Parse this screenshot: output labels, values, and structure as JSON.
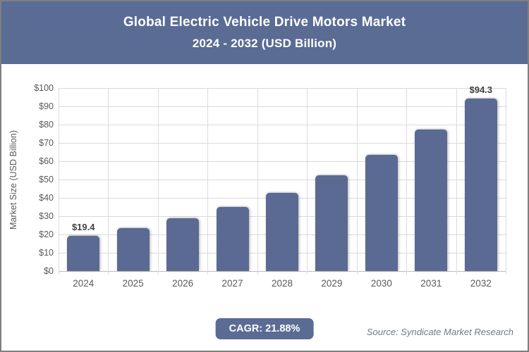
{
  "header": {
    "title_line1": "Global Electric Vehicle Drive Motors Market",
    "title_line2": "2024 - 2032 (USD Billion)"
  },
  "chart_data": {
    "type": "bar",
    "title": "Global Electric Vehicle Drive Motors Market 2024 - 2032 (USD Billion)",
    "categories": [
      "2024",
      "2025",
      "2026",
      "2027",
      "2028",
      "2029",
      "2030",
      "2031",
      "2032"
    ],
    "values": [
      19.4,
      23.6,
      28.8,
      35.1,
      42.8,
      52.2,
      63.6,
      77.5,
      94.3
    ],
    "point_labels": [
      "$19.4",
      null,
      null,
      null,
      null,
      null,
      null,
      null,
      "$94.3"
    ],
    "xlabel": "",
    "ylabel": "Market Size (USD Billion)",
    "ylim": [
      0,
      100
    ],
    "ytick_step": 10,
    "ytick_prefix": "$",
    "grid": true,
    "legend": "none",
    "bar_color": "#5a6a92"
  },
  "footer": {
    "cagr_label": "CAGR: 21.88%",
    "source": "Source: Syndicate Market Research"
  },
  "colors": {
    "header_bg": "#5a6b94",
    "badge_bg": "#5a6b94",
    "bar": "#5a6a92",
    "gridline": "#dadada",
    "axis_text": "#595959",
    "data_label": "#404040",
    "source_text": "#6b7b8a",
    "page_border": "#7f7f7f"
  }
}
